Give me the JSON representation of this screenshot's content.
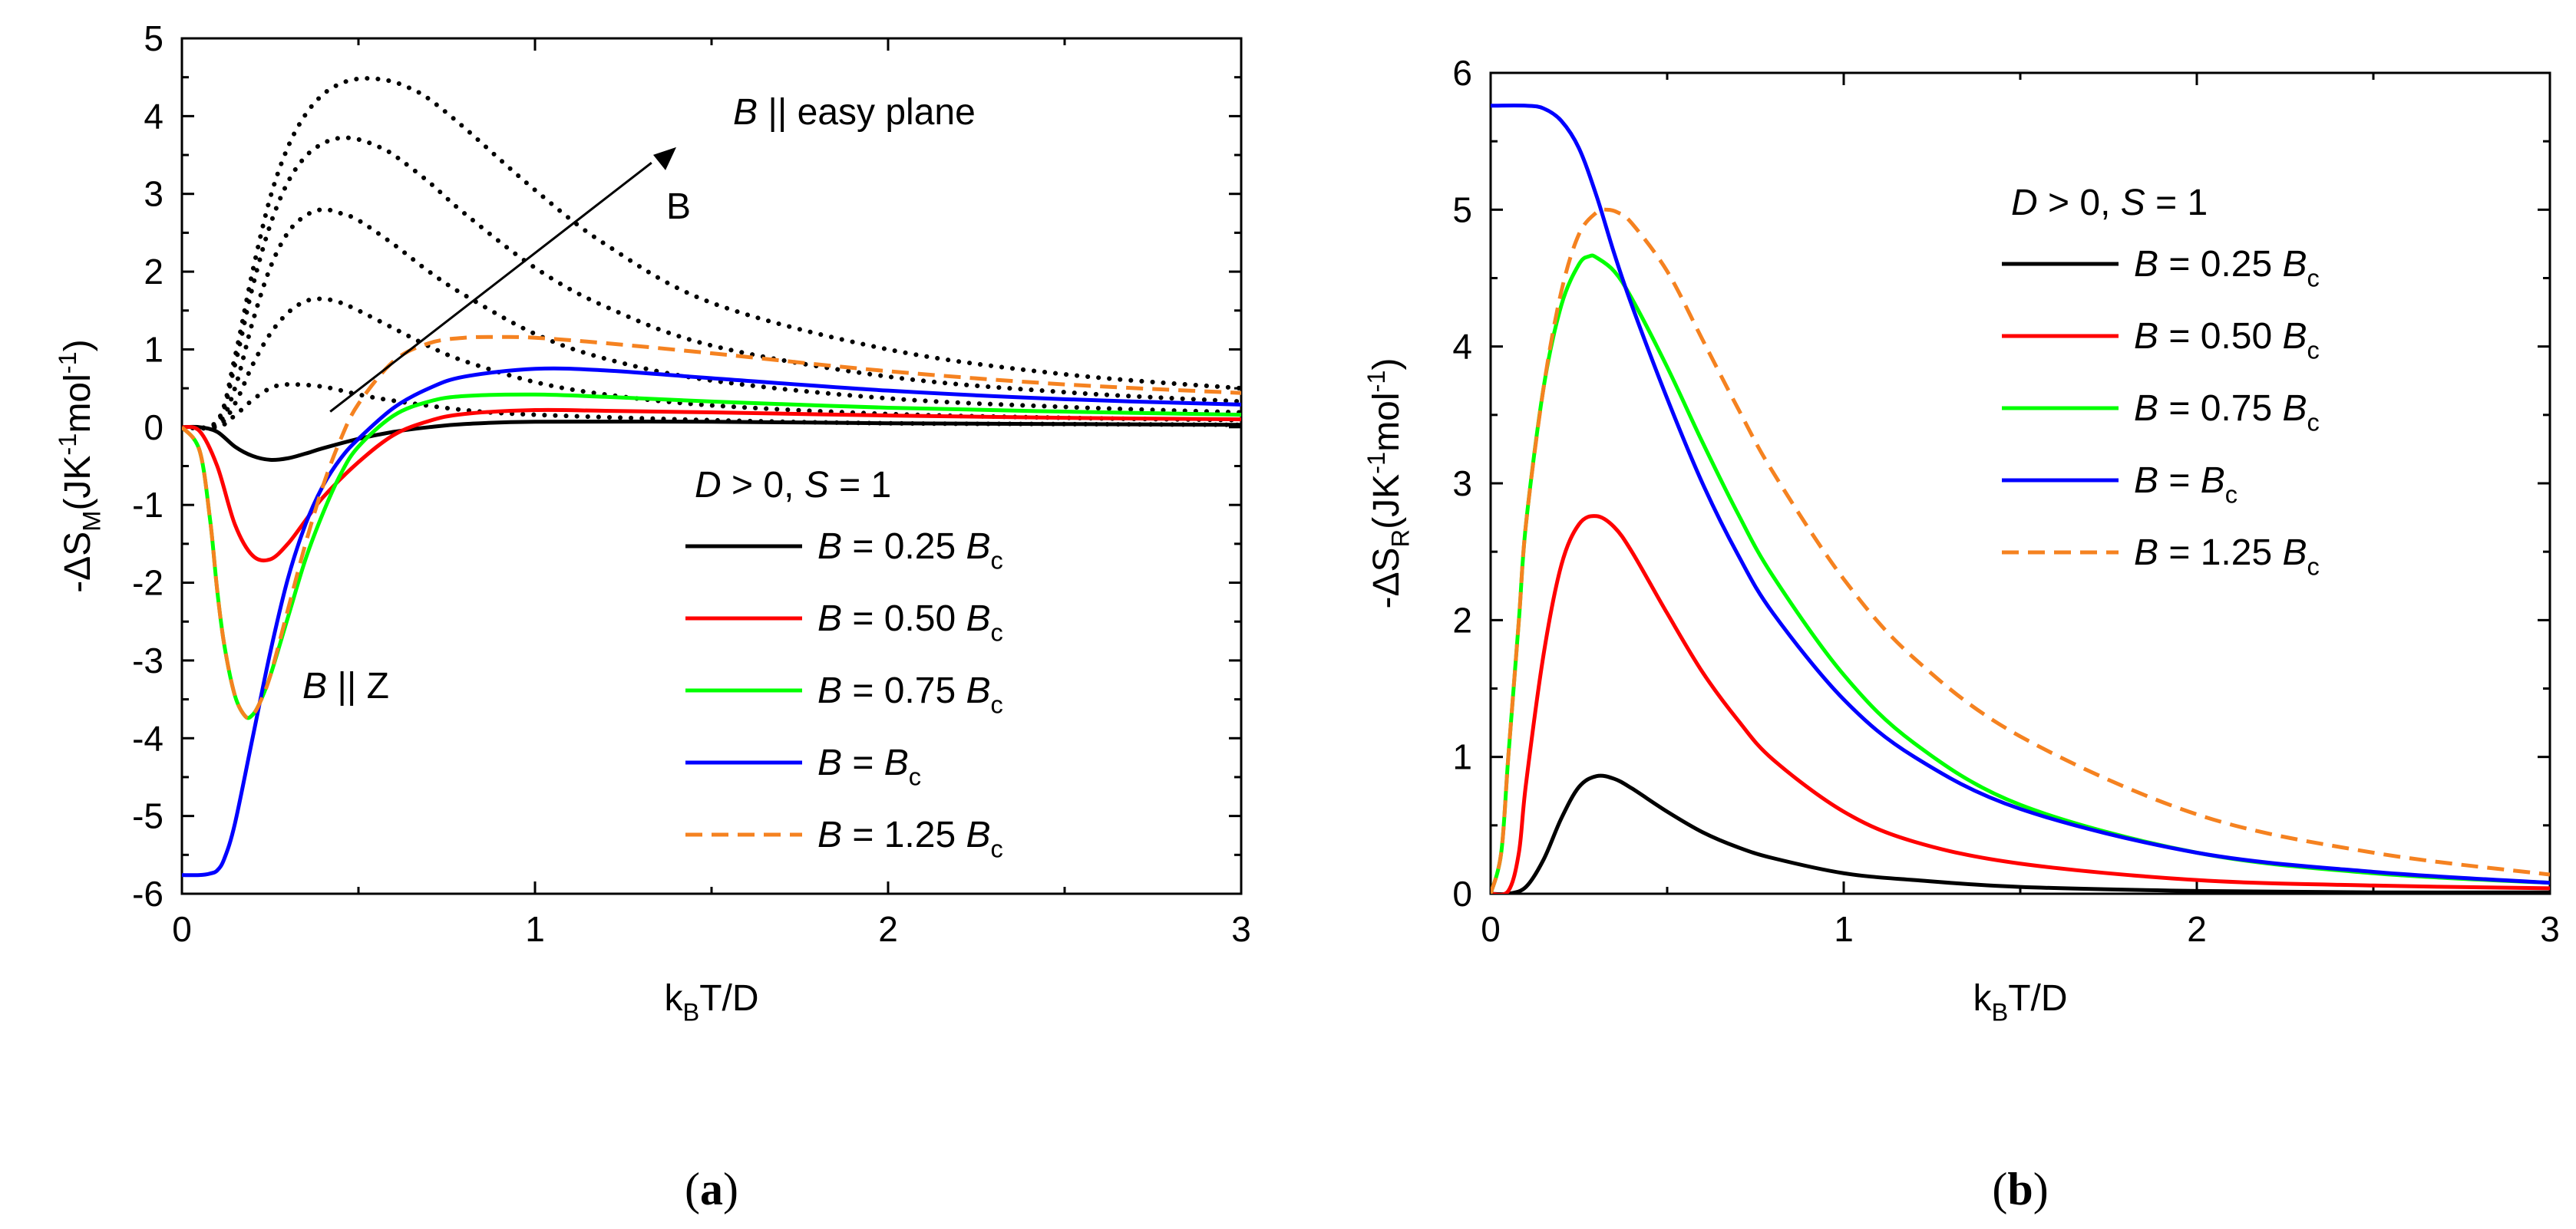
{
  "chart_data": [
    {
      "id": "a",
      "type": "line",
      "panel_label": "a",
      "xlabel": "k_BT/D",
      "ylabel": "-ΔS_M(JK^-1mol^-1)",
      "xlim": [
        0,
        3
      ],
      "ylim": [
        -6,
        5
      ],
      "xticks": [
        0,
        1,
        2,
        3
      ],
      "yticks": [
        -6,
        -5,
        -4,
        -3,
        -2,
        -1,
        0,
        1,
        2,
        3,
        4,
        5
      ],
      "legend_title": "D > 0, S = 1",
      "legend_position": "middle-right",
      "annotations": {
        "easy_plane": "B || easy plane",
        "arrow": "B",
        "z_axis": "B || Z"
      },
      "series": [
        {
          "name": "B = 0.25 B_c",
          "color": "#000000",
          "dash": "solid",
          "legend": true,
          "x": [
            0,
            0.05,
            0.1,
            0.15,
            0.2,
            0.25,
            0.3,
            0.35,
            0.4,
            0.5,
            0.6,
            0.7,
            0.8,
            1.0,
            1.5,
            2.0,
            2.5,
            3.0
          ],
          "y": [
            0,
            0,
            -0.06,
            -0.25,
            -0.37,
            -0.42,
            -0.4,
            -0.34,
            -0.27,
            -0.15,
            -0.06,
            0.0,
            0.04,
            0.07,
            0.07,
            0.05,
            0.04,
            0.03
          ]
        },
        {
          "name": "B = 0.50 B_c",
          "color": "#ff0000",
          "dash": "solid",
          "legend": true,
          "x": [
            0,
            0.05,
            0.1,
            0.15,
            0.2,
            0.25,
            0.3,
            0.35,
            0.4,
            0.5,
            0.6,
            0.7,
            0.8,
            1.0,
            1.2,
            1.5,
            2.0,
            2.5,
            3.0
          ],
          "y": [
            0,
            -0.05,
            -0.5,
            -1.25,
            -1.65,
            -1.7,
            -1.5,
            -1.2,
            -0.9,
            -0.45,
            -0.1,
            0.08,
            0.17,
            0.22,
            0.21,
            0.19,
            0.15,
            0.12,
            0.1
          ]
        },
        {
          "name": "B = 0.75 B_c",
          "color": "#00ff00",
          "dash": "solid",
          "legend": true,
          "x": [
            0,
            0.05,
            0.08,
            0.1,
            0.12,
            0.15,
            0.18,
            0.2,
            0.22,
            0.25,
            0.3,
            0.35,
            0.4,
            0.45,
            0.5,
            0.6,
            0.7,
            0.8,
            1.0,
            1.2,
            1.5,
            2.0,
            2.5,
            3.0
          ],
          "y": [
            0,
            -0.3,
            -1.2,
            -2.1,
            -2.8,
            -3.45,
            -3.72,
            -3.7,
            -3.55,
            -3.2,
            -2.45,
            -1.7,
            -1.1,
            -0.6,
            -0.25,
            0.15,
            0.33,
            0.4,
            0.42,
            0.39,
            0.33,
            0.25,
            0.2,
            0.16
          ]
        },
        {
          "name": "B = B_c",
          "color": "#0000ff",
          "dash": "solid",
          "legend": true,
          "x": [
            0,
            0.05,
            0.08,
            0.1,
            0.12,
            0.15,
            0.2,
            0.25,
            0.3,
            0.35,
            0.4,
            0.45,
            0.5,
            0.6,
            0.7,
            0.8,
            1.0,
            1.2,
            1.5,
            2.0,
            2.5,
            3.0
          ],
          "y": [
            -5.76,
            -5.76,
            -5.74,
            -5.7,
            -5.55,
            -5.1,
            -4.0,
            -2.9,
            -1.95,
            -1.25,
            -0.75,
            -0.4,
            -0.15,
            0.25,
            0.5,
            0.65,
            0.75,
            0.73,
            0.63,
            0.47,
            0.36,
            0.29
          ]
        },
        {
          "name": "B = 1.25 B_c",
          "color": "#f58220",
          "dash": "dashed",
          "legend": true,
          "x": [
            0,
            0.05,
            0.08,
            0.1,
            0.12,
            0.15,
            0.18,
            0.2,
            0.22,
            0.25,
            0.3,
            0.35,
            0.4,
            0.45,
            0.5,
            0.6,
            0.7,
            0.8,
            0.9,
            1.0,
            1.2,
            1.5,
            2.0,
            2.5,
            3.0
          ],
          "y": [
            0,
            -0.3,
            -1.2,
            -2.1,
            -2.8,
            -3.45,
            -3.72,
            -3.7,
            -3.55,
            -3.2,
            -2.35,
            -1.5,
            -0.75,
            -0.15,
            0.3,
            0.85,
            1.08,
            1.15,
            1.16,
            1.15,
            1.08,
            0.95,
            0.72,
            0.55,
            0.44
          ]
        },
        {
          "name": "easy plane 0.25 B_c",
          "color": "#000000",
          "dash": "dotted",
          "legend": false,
          "x": [
            0,
            0.1,
            0.15,
            0.2,
            0.25,
            0.3,
            0.4,
            0.5,
            0.6,
            0.8,
            1.0,
            1.5,
            2.0,
            2.5,
            3.0
          ],
          "y": [
            0,
            0,
            0.15,
            0.35,
            0.5,
            0.55,
            0.52,
            0.42,
            0.34,
            0.22,
            0.16,
            0.09,
            0.05,
            0.04,
            0.03
          ]
        },
        {
          "name": "easy plane 0.50 B_c",
          "color": "#000000",
          "dash": "dotted",
          "legend": false,
          "x": [
            0,
            0.1,
            0.15,
            0.2,
            0.25,
            0.3,
            0.35,
            0.4,
            0.45,
            0.5,
            0.6,
            0.7,
            0.8,
            1.0,
            1.2,
            1.5,
            2.0,
            2.5,
            3.0
          ],
          "y": [
            0,
            0.02,
            0.3,
            0.8,
            1.2,
            1.47,
            1.62,
            1.65,
            1.6,
            1.5,
            1.27,
            1.04,
            0.85,
            0.58,
            0.42,
            0.28,
            0.17,
            0.12,
            0.09
          ]
        },
        {
          "name": "easy plane 0.75 B_c",
          "color": "#000000",
          "dash": "dotted",
          "legend": false,
          "x": [
            0,
            0.1,
            0.15,
            0.2,
            0.25,
            0.3,
            0.35,
            0.4,
            0.45,
            0.5,
            0.6,
            0.7,
            0.8,
            1.0,
            1.2,
            1.5,
            2.0,
            2.5,
            3.0
          ],
          "y": [
            0,
            0.04,
            0.5,
            1.35,
            2.05,
            2.5,
            2.72,
            2.8,
            2.75,
            2.66,
            2.35,
            2.0,
            1.7,
            1.2,
            0.88,
            0.6,
            0.37,
            0.26,
            0.19
          ]
        },
        {
          "name": "easy plane B_c",
          "color": "#000000",
          "dash": "dotted",
          "legend": false,
          "x": [
            0,
            0.1,
            0.15,
            0.2,
            0.25,
            0.3,
            0.35,
            0.4,
            0.45,
            0.5,
            0.55,
            0.6,
            0.7,
            0.8,
            1.0,
            1.2,
            1.5,
            2.0,
            2.5,
            3.0
          ],
          "y": [
            0,
            0.06,
            0.8,
            1.8,
            2.6,
            3.15,
            3.48,
            3.65,
            3.72,
            3.7,
            3.62,
            3.5,
            3.15,
            2.75,
            2.05,
            1.55,
            1.05,
            0.65,
            0.45,
            0.33
          ]
        },
        {
          "name": "easy plane 1.25 B_c",
          "color": "#000000",
          "dash": "dotted",
          "legend": false,
          "x": [
            0,
            0.1,
            0.15,
            0.2,
            0.25,
            0.3,
            0.35,
            0.4,
            0.45,
            0.5,
            0.55,
            0.6,
            0.65,
            0.7,
            0.8,
            1.0,
            1.2,
            1.5,
            2.0,
            2.5,
            3.0
          ],
          "y": [
            0,
            0.08,
            0.9,
            2.0,
            2.95,
            3.6,
            4.02,
            4.28,
            4.42,
            4.48,
            4.48,
            4.44,
            4.35,
            4.22,
            3.85,
            3.05,
            2.35,
            1.6,
            1.0,
            0.68,
            0.5
          ]
        }
      ]
    },
    {
      "id": "b",
      "type": "line",
      "panel_label": "b",
      "xlabel": "k_BT/D",
      "ylabel": "-ΔS_R(JK^-1mol^-1)",
      "xlim": [
        0,
        3
      ],
      "ylim": [
        0,
        6
      ],
      "xticks": [
        0,
        1,
        2,
        3
      ],
      "yticks": [
        0,
        1,
        2,
        3,
        4,
        5,
        6
      ],
      "legend_title": "D > 0, S = 1",
      "legend_position": "top-right",
      "series": [
        {
          "name": "B = 0.25 B_c",
          "color": "#000000",
          "dash": "solid",
          "legend": true,
          "x": [
            0,
            0.05,
            0.1,
            0.15,
            0.2,
            0.25,
            0.3,
            0.35,
            0.4,
            0.5,
            0.6,
            0.7,
            0.8,
            1.0,
            1.2,
            1.5,
            2.0,
            2.5,
            3.0
          ],
          "y": [
            0,
            0,
            0.05,
            0.25,
            0.55,
            0.78,
            0.86,
            0.84,
            0.77,
            0.6,
            0.45,
            0.34,
            0.26,
            0.15,
            0.1,
            0.05,
            0.02,
            0.01,
            0.01
          ]
        },
        {
          "name": "B = 0.50 B_c",
          "color": "#ff0000",
          "dash": "solid",
          "legend": true,
          "x": [
            0,
            0.05,
            0.08,
            0.1,
            0.15,
            0.2,
            0.25,
            0.3,
            0.35,
            0.4,
            0.5,
            0.6,
            0.7,
            0.8,
            1.0,
            1.2,
            1.5,
            2.0,
            2.5,
            3.0
          ],
          "y": [
            0,
            0.02,
            0.3,
            0.8,
            1.75,
            2.4,
            2.7,
            2.76,
            2.68,
            2.5,
            2.05,
            1.62,
            1.27,
            0.98,
            0.6,
            0.38,
            0.22,
            0.1,
            0.06,
            0.04
          ]
        },
        {
          "name": "B = 0.75 B_c",
          "color": "#00ff00",
          "dash": "solid",
          "legend": true,
          "x": [
            0,
            0.03,
            0.05,
            0.08,
            0.1,
            0.15,
            0.2,
            0.25,
            0.28,
            0.3,
            0.35,
            0.4,
            0.5,
            0.6,
            0.7,
            0.8,
            1.0,
            1.2,
            1.5,
            2.0,
            2.5,
            3.0
          ],
          "y": [
            0,
            0.3,
            1.0,
            2.0,
            2.7,
            3.7,
            4.3,
            4.6,
            4.66,
            4.65,
            4.55,
            4.35,
            3.85,
            3.3,
            2.78,
            2.32,
            1.6,
            1.1,
            0.65,
            0.3,
            0.15,
            0.08
          ]
        },
        {
          "name": "B = B_c",
          "color": "#0000ff",
          "dash": "solid",
          "legend": true,
          "x": [
            0,
            0.1,
            0.15,
            0.2,
            0.25,
            0.3,
            0.35,
            0.4,
            0.5,
            0.6,
            0.7,
            0.8,
            1.0,
            1.2,
            1.5,
            2.0,
            2.5,
            3.0
          ],
          "y": [
            5.76,
            5.76,
            5.74,
            5.65,
            5.45,
            5.1,
            4.68,
            4.3,
            3.62,
            3.0,
            2.48,
            2.05,
            1.42,
            1.0,
            0.62,
            0.3,
            0.16,
            0.08
          ]
        },
        {
          "name": "B = 1.25 B_c",
          "color": "#f58220",
          "dash": "dashed",
          "legend": true,
          "x": [
            0,
            0.03,
            0.05,
            0.08,
            0.1,
            0.15,
            0.2,
            0.25,
            0.3,
            0.33,
            0.36,
            0.4,
            0.5,
            0.6,
            0.7,
            0.8,
            1.0,
            1.2,
            1.5,
            2.0,
            2.5,
            3.0
          ],
          "y": [
            0,
            0.3,
            1.0,
            2.0,
            2.7,
            3.7,
            4.4,
            4.82,
            4.98,
            5.0,
            4.98,
            4.9,
            4.55,
            4.05,
            3.55,
            3.08,
            2.3,
            1.72,
            1.15,
            0.58,
            0.3,
            0.14
          ]
        }
      ]
    }
  ]
}
